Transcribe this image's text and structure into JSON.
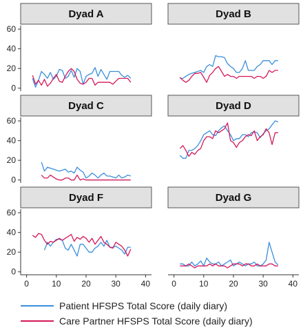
{
  "chart_data": {
    "type": "line",
    "x_ticks": [
      0,
      10,
      20,
      30,
      40
    ],
    "y_ticks": [
      0,
      20,
      40,
      60
    ],
    "xlim": [
      -2,
      42
    ],
    "ylim": [
      -3,
      65
    ],
    "grid": false,
    "legend_position": "bottom",
    "colors": {
      "patient": "#3a8fdc",
      "care_partner": "#d4185a",
      "panel_header": "#e1e1e1",
      "panel_border": "#555555"
    },
    "series_labels": {
      "patient": "Patient HFSPS Total Score (daily diary)",
      "care_partner": "Care Partner HFSPS Total Score (daily diary)"
    },
    "panels": [
      {
        "title": "Dyad A",
        "patient": {
          "x": [
            2,
            3,
            4,
            5,
            6,
            7,
            8,
            9,
            10,
            11,
            12,
            13,
            14,
            15,
            16,
            17,
            18,
            19,
            20,
            21,
            22,
            23,
            24,
            25,
            26,
            27,
            28,
            29,
            30,
            31,
            32,
            33,
            34,
            35
          ],
          "y": [
            10,
            1,
            8,
            17,
            14,
            10,
            16,
            9,
            12,
            19,
            18,
            10,
            12,
            18,
            11,
            20,
            17,
            4,
            12,
            14,
            15,
            21,
            12,
            19,
            14,
            9,
            17,
            17,
            17,
            17,
            13,
            11,
            13,
            10
          ]
        },
        "care_partner": {
          "x": [
            2,
            3,
            4,
            5,
            6,
            7,
            8,
            9,
            10,
            11,
            12,
            13,
            14,
            15,
            16,
            17,
            18,
            19,
            20,
            21,
            22,
            23,
            24,
            25,
            26,
            27,
            28,
            29,
            30,
            31,
            32,
            33,
            34,
            35
          ],
          "y": [
            13,
            4,
            8,
            3,
            9,
            2,
            5,
            10,
            14,
            7,
            6,
            12,
            17,
            20,
            17,
            9,
            5,
            4,
            6,
            10,
            10,
            3,
            6,
            6,
            6,
            6,
            6,
            4,
            7,
            10,
            10,
            10,
            10,
            6
          ]
        }
      },
      {
        "title": "Dyad B",
        "patient": {
          "x": [
            2,
            3,
            4,
            5,
            6,
            7,
            8,
            9,
            10,
            11,
            12,
            13,
            14,
            15,
            16,
            17,
            18,
            19,
            20,
            21,
            22,
            23,
            24,
            25,
            26,
            27,
            28,
            29,
            30,
            31,
            32,
            33,
            34,
            35
          ],
          "y": [
            10,
            10,
            12,
            14,
            15,
            16,
            17,
            18,
            16,
            22,
            24,
            22,
            33,
            32,
            32,
            31,
            25,
            22,
            20,
            16,
            16,
            20,
            28,
            18,
            18,
            18,
            22,
            24,
            28,
            28,
            28,
            24,
            28,
            28
          ]
        },
        "care_partner": {
          "x": [
            2,
            3,
            4,
            5,
            6,
            7,
            8,
            9,
            10,
            11,
            12,
            13,
            14,
            15,
            16,
            17,
            18,
            19,
            20,
            21,
            22,
            23,
            24,
            25,
            26,
            27,
            28,
            29,
            30,
            31,
            32,
            33,
            34,
            35
          ],
          "y": [
            11,
            8,
            6,
            8,
            12,
            15,
            15,
            16,
            11,
            6,
            13,
            16,
            20,
            22,
            17,
            12,
            14,
            12,
            12,
            10,
            12,
            12,
            12,
            12,
            12,
            10,
            12,
            12,
            10,
            12,
            18,
            16,
            18,
            18
          ]
        }
      },
      {
        "title": "Dyad C",
        "patient": {
          "x": [
            5,
            6,
            7,
            8,
            9,
            10,
            11,
            12,
            13,
            14,
            15,
            16,
            17,
            18,
            19,
            20,
            21,
            22,
            23,
            24,
            25,
            26,
            27,
            28,
            29,
            30,
            31,
            32,
            33,
            34,
            35
          ],
          "y": [
            18,
            9,
            13,
            12,
            11,
            10,
            9,
            10,
            11,
            8,
            9,
            7,
            13,
            10,
            8,
            2,
            4,
            7,
            5,
            2,
            5,
            7,
            4,
            4,
            3,
            2,
            5,
            2,
            3,
            5,
            4
          ]
        },
        "care_partner": {
          "x": [
            5,
            6,
            7,
            8,
            9,
            10,
            11,
            12,
            13,
            14,
            15,
            16,
            17,
            18,
            19,
            20,
            21,
            22,
            23,
            24,
            25,
            26,
            27,
            28,
            29,
            30,
            31,
            32,
            33,
            34,
            35
          ],
          "y": [
            5,
            2,
            2,
            5,
            3,
            1,
            0,
            0,
            2,
            2,
            0,
            0,
            5,
            0,
            1,
            0,
            0,
            0,
            0,
            0,
            0,
            0,
            0,
            0,
            0,
            0,
            0,
            0,
            0,
            0,
            0
          ]
        }
      },
      {
        "title": "Dyad D",
        "patient": {
          "x": [
            2,
            3,
            4,
            5,
            6,
            7,
            8,
            9,
            10,
            11,
            12,
            13,
            14,
            15,
            16,
            17,
            18,
            19,
            20,
            21,
            22,
            23,
            24,
            25,
            26,
            27,
            28,
            29,
            30,
            31,
            32,
            33,
            34,
            35
          ],
          "y": [
            25,
            22,
            22,
            30,
            30,
            32,
            35,
            40,
            46,
            48,
            50,
            46,
            45,
            50,
            53,
            55,
            50,
            46,
            40,
            42,
            42,
            46,
            46,
            44,
            48,
            49,
            48,
            43,
            47,
            50,
            52,
            56,
            60,
            59
          ]
        },
        "care_partner": {
          "x": [
            2,
            3,
            4,
            5,
            6,
            7,
            8,
            9,
            10,
            11,
            12,
            13,
            14,
            15,
            16,
            17,
            18,
            19,
            20,
            21,
            22,
            23,
            24,
            25,
            26,
            27,
            28,
            29,
            30,
            31,
            32,
            33,
            34,
            35
          ],
          "y": [
            32,
            35,
            30,
            24,
            28,
            26,
            30,
            32,
            40,
            44,
            44,
            42,
            50,
            48,
            50,
            52,
            58,
            40,
            38,
            33,
            38,
            40,
            44,
            46,
            45,
            50,
            40,
            44,
            46,
            52,
            48,
            36,
            48,
            48
          ]
        }
      },
      {
        "title": "Dyad F",
        "patient": {
          "x": [
            6,
            7,
            8,
            9,
            10,
            11,
            12,
            13,
            14,
            15,
            16,
            17,
            18,
            19,
            20,
            21,
            22,
            23,
            24,
            25,
            26,
            27,
            28,
            29,
            30,
            31,
            32,
            33,
            34,
            35
          ],
          "y": [
            22,
            30,
            26,
            30,
            33,
            33,
            32,
            24,
            22,
            28,
            22,
            16,
            28,
            28,
            24,
            20,
            20,
            24,
            26,
            30,
            26,
            32,
            25,
            25,
            26,
            24,
            22,
            18,
            25,
            25
          ]
        },
        "care_partner": {
          "x": [
            2,
            3,
            4,
            5,
            6,
            7,
            8,
            9,
            10,
            11,
            12,
            13,
            14,
            15,
            16,
            17,
            18,
            19,
            20,
            21,
            22,
            23,
            24,
            25,
            26,
            27,
            28,
            29,
            30,
            31,
            32,
            33,
            34,
            35
          ],
          "y": [
            37,
            35,
            39,
            38,
            32,
            28,
            31,
            30,
            32,
            34,
            32,
            34,
            36,
            38,
            31,
            35,
            33,
            36,
            34,
            30,
            34,
            28,
            32,
            36,
            30,
            28,
            25,
            24,
            30,
            28,
            26,
            22,
            16,
            23
          ]
        }
      },
      {
        "title": "Dyad G",
        "patient": {
          "x": [
            2,
            3,
            4,
            5,
            6,
            7,
            8,
            9,
            10,
            11,
            12,
            13,
            14,
            15,
            16,
            17,
            18,
            19,
            20,
            21,
            22,
            23,
            24,
            25,
            26,
            27,
            28,
            29,
            30,
            31,
            32,
            33,
            34,
            35
          ],
          "y": [
            8,
            8,
            6,
            6,
            10,
            6,
            8,
            11,
            6,
            14,
            10,
            8,
            8,
            10,
            6,
            8,
            10,
            12,
            6,
            8,
            10,
            8,
            6,
            8,
            8,
            10,
            6,
            6,
            8,
            12,
            30,
            20,
            10,
            7
          ]
        },
        "care_partner": {
          "x": [
            2,
            3,
            4,
            5,
            6,
            7,
            8,
            9,
            10,
            11,
            12,
            13,
            14,
            15,
            16,
            17,
            18,
            19,
            20,
            21,
            22,
            23,
            24,
            25,
            26,
            27,
            28,
            29,
            30,
            31,
            32,
            33,
            34,
            35
          ],
          "y": [
            6,
            6,
            6,
            8,
            6,
            4,
            6,
            6,
            6,
            6,
            8,
            6,
            8,
            6,
            6,
            6,
            4,
            6,
            8,
            8,
            8,
            6,
            8,
            8,
            6,
            6,
            8,
            6,
            6,
            6,
            8,
            8,
            6,
            6
          ]
        }
      }
    ]
  }
}
